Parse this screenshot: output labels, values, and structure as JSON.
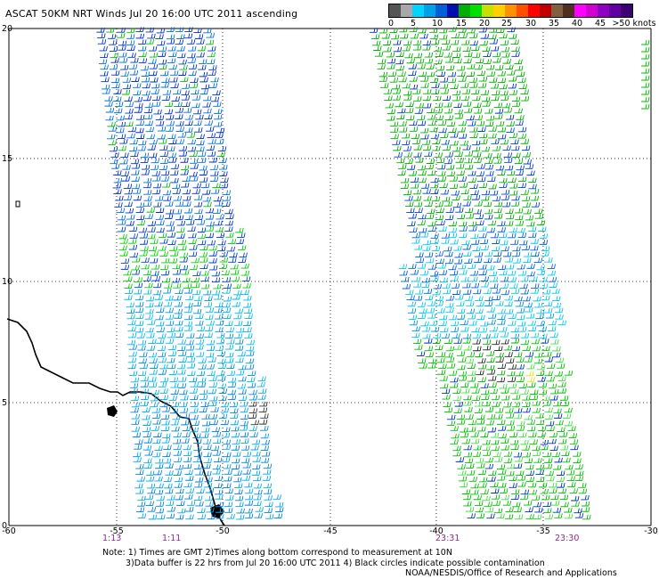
{
  "title": "ASCAT 50KM NRT Winds Jul 20 16:00 UTC 2011 ascending",
  "colorbar": {
    "colors": [
      "#555555",
      "#a8a8a8",
      "#00d4ff",
      "#00a0e8",
      "#0060d8",
      "#0010b0",
      "#00b000",
      "#00e000",
      "#c8e000",
      "#ffd000",
      "#ff9000",
      "#ff5000",
      "#ff0000",
      "#c00000",
      "#806040",
      "#503020",
      "#ff00ff",
      "#d000d0",
      "#9000c0",
      "#6000a0",
      "#3c0070"
    ],
    "labels": [
      "0",
      "5",
      "10",
      "15",
      "20",
      "25",
      "30",
      "35",
      "40",
      "45",
      ">50 knots"
    ]
  },
  "axes": {
    "x_ticks": [
      "-60",
      "-55",
      "-50",
      "-45",
      "-40",
      "-35",
      "-30"
    ],
    "y_ticks": [
      "0",
      "5",
      "10",
      "15",
      "20"
    ]
  },
  "pass_times": [
    "1:13",
    "1:11",
    "23:31",
    "23:30"
  ],
  "notes": {
    "line1": "Note: 1) Times are GMT 2)Times along bottom correspond to measurement at 10N",
    "line2": "3)Data buffer is 22 hrs from Jul 20 16:00 UTC 2011 4) Black circles indicate possible contamination",
    "credit": "NOAA/NESDIS/Office of Research and Applications"
  }
}
